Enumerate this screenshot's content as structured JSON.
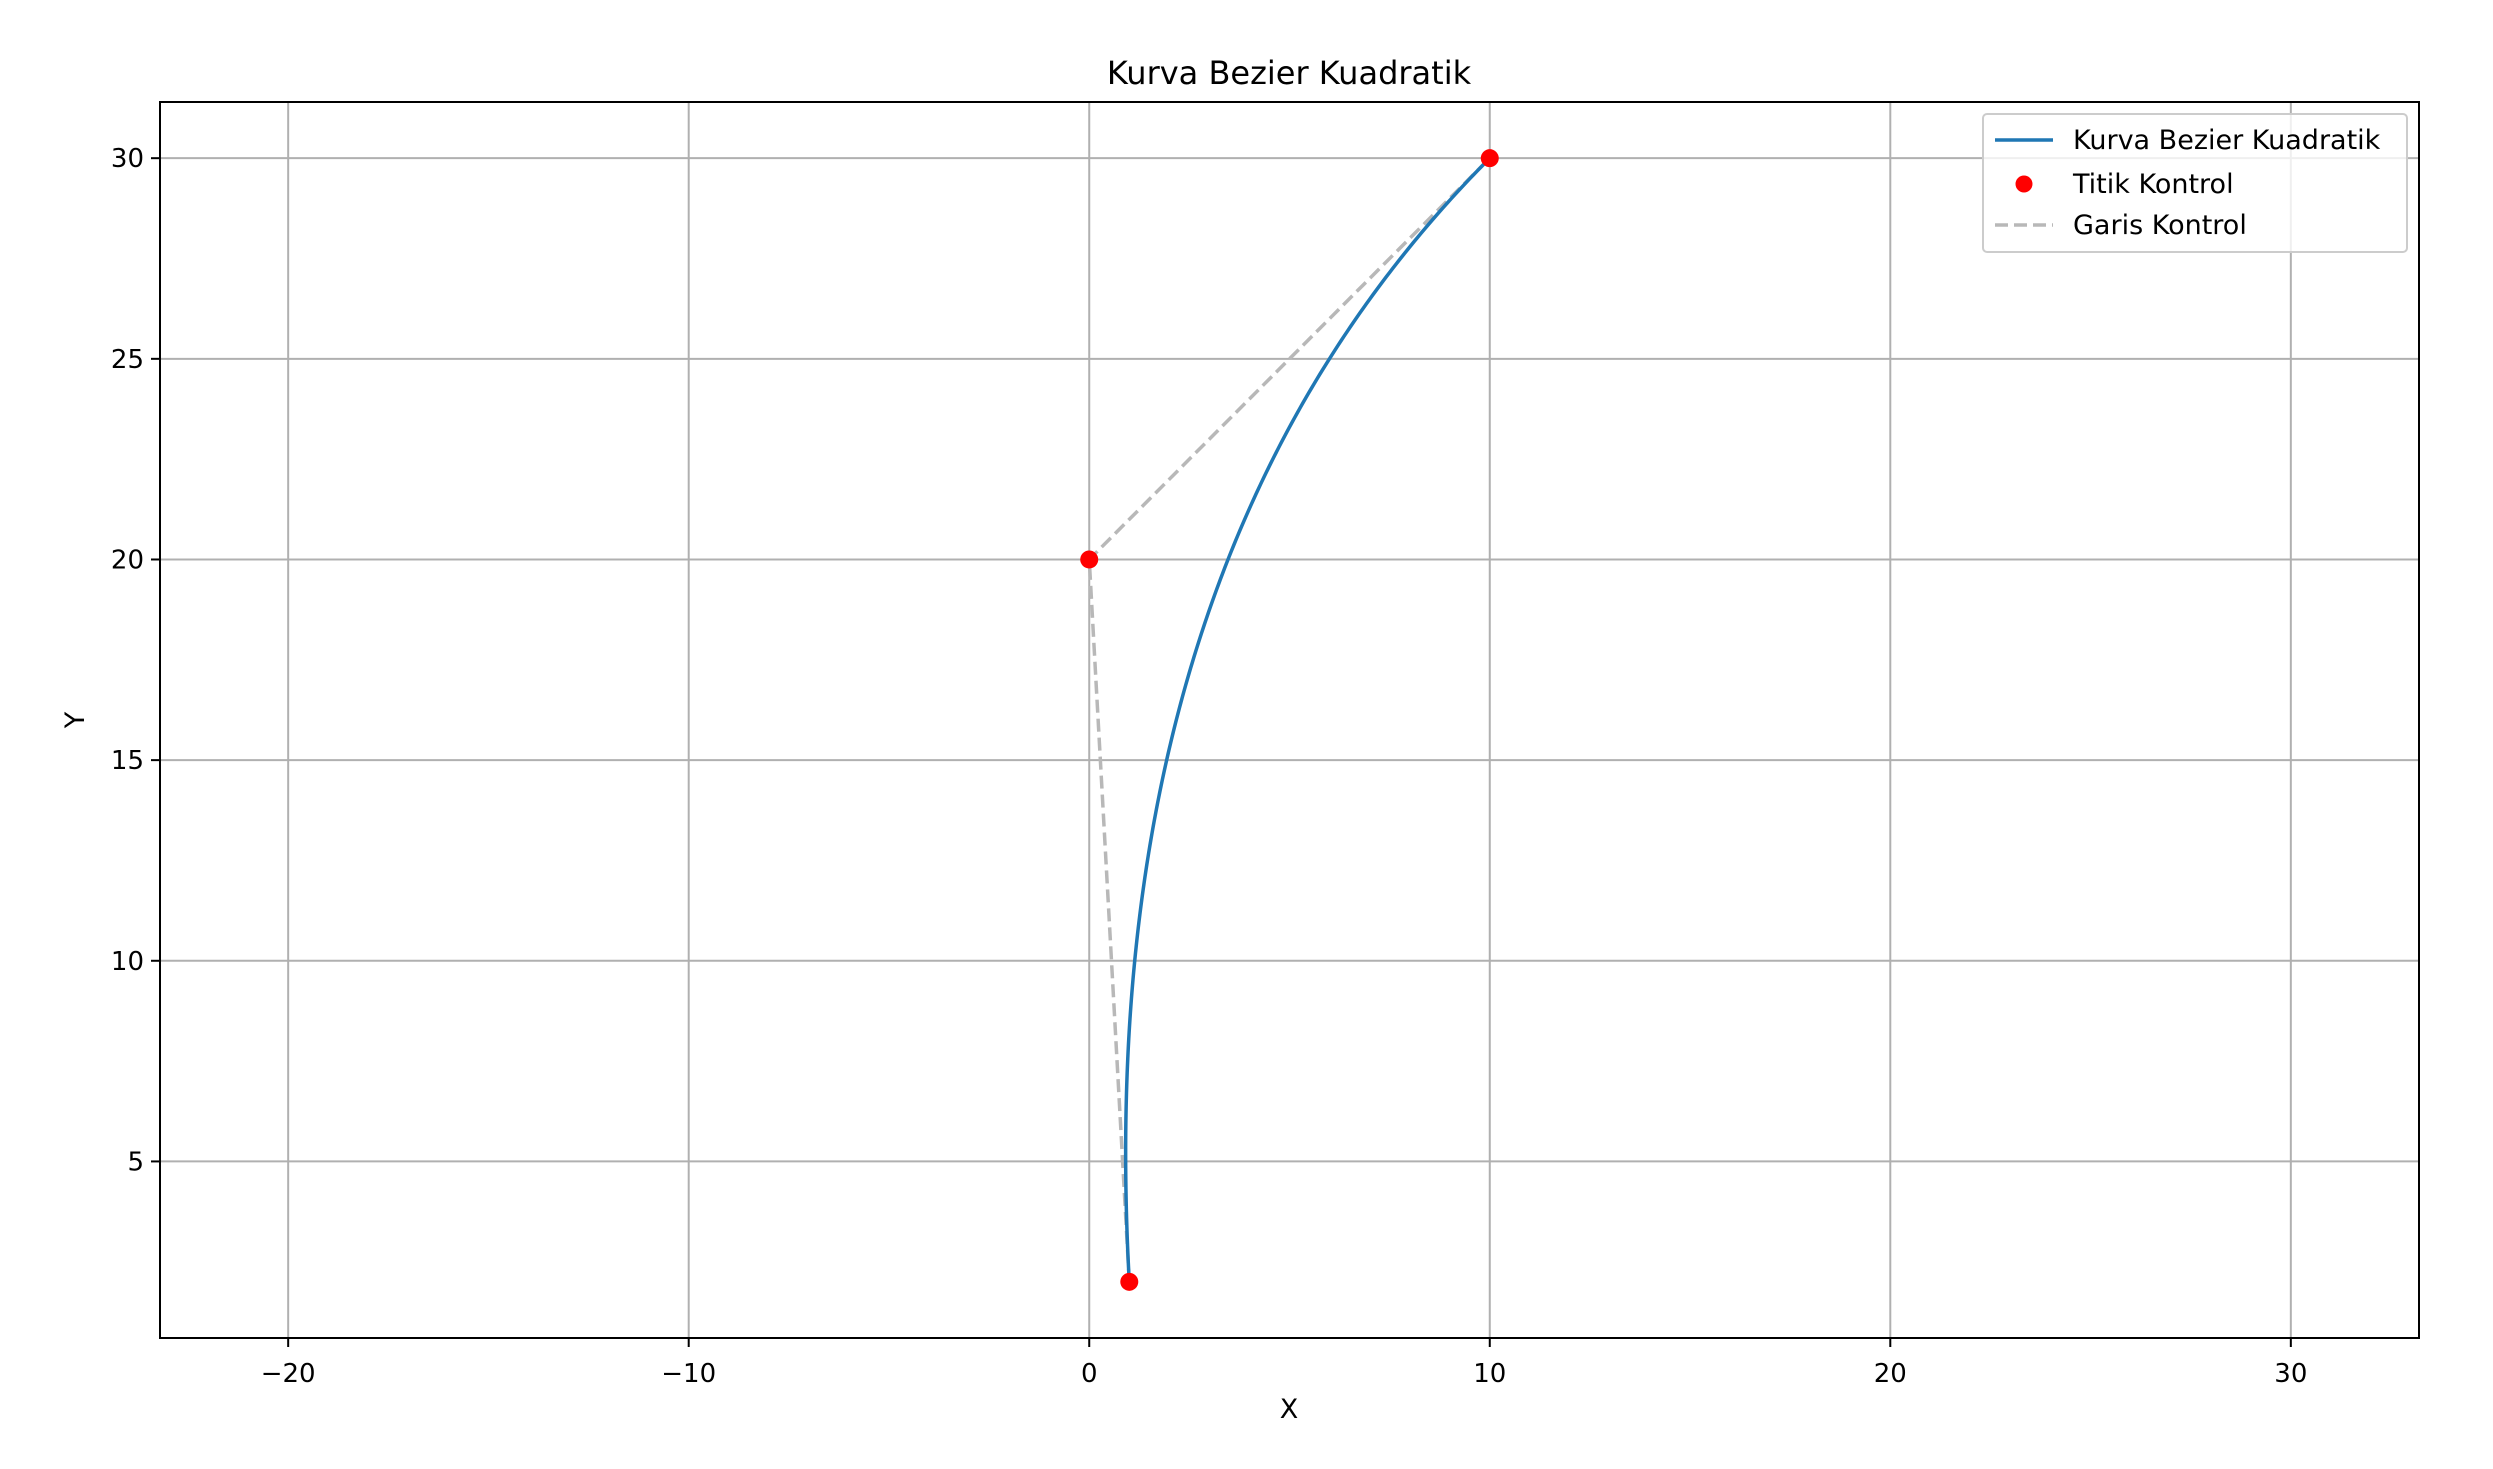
{
  "chart_data": {
    "type": "line",
    "title": "Kurva Bezier Kuadratik",
    "xlabel": "X",
    "ylabel": "Y",
    "xlim": [
      -23.2,
      33.2
    ],
    "ylim": [
      0.6,
      31.4
    ],
    "xticks": [
      -20,
      -10,
      0,
      10,
      20,
      30
    ],
    "xtick_labels": [
      "−20",
      "−10",
      "0",
      "10",
      "20",
      "30"
    ],
    "yticks": [
      5,
      10,
      15,
      20,
      25,
      30
    ],
    "ytick_labels": [
      "5",
      "10",
      "15",
      "20",
      "25",
      "30"
    ],
    "grid": true,
    "legend_position": "top-right",
    "control_points": [
      {
        "x": 1,
        "y": 2
      },
      {
        "x": 0,
        "y": 20
      },
      {
        "x": 10,
        "y": 30
      }
    ],
    "series": [
      {
        "name": "Kurva Bezier Kuadratik",
        "kind": "line",
        "color": "#1f77b4",
        "style": "solid"
      },
      {
        "name": "Titik Kontrol",
        "kind": "scatter",
        "color": "#ff0000"
      },
      {
        "name": "Garis Kontrol",
        "kind": "line",
        "color": "#b8b8b8",
        "style": "dashed"
      }
    ]
  }
}
